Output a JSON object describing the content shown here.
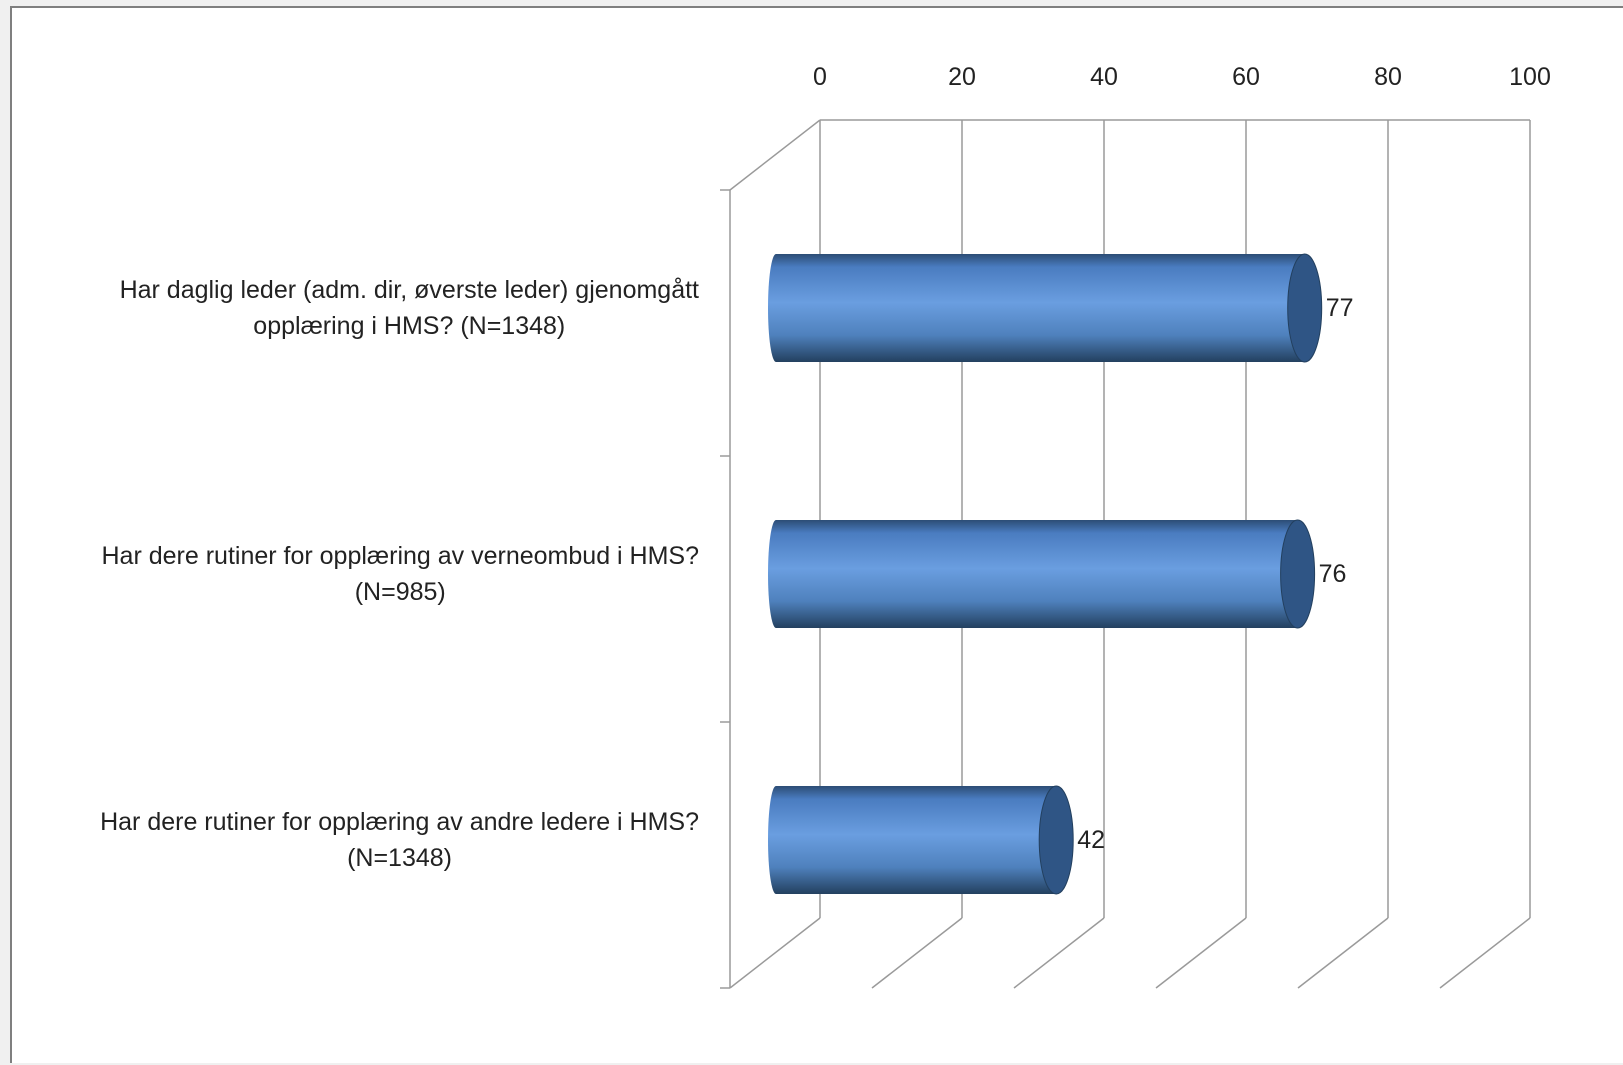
{
  "chart_data": {
    "type": "bar",
    "orientation": "horizontal",
    "style": "3d-cylinder",
    "categories": [
      "Har daglig leder (adm. dir, øverste leder) gjenomgått opplæring i HMS? (N=1348)",
      "Har dere rutiner for opplæring av verneombud i HMS? (N=985)",
      "Har dere rutiner for opplæring av andre ledere i HMS? (N=1348)"
    ],
    "category_label_lines": [
      [
        "Har daglig leder (adm. dir, øverste leder) gjenomgått",
        "opplæring i HMS? (N=1348)"
      ],
      [
        "Har dere rutiner for opplæring av verneombud i HMS?",
        "(N=985)"
      ],
      [
        "Har dere rutiner for opplæring av andre ledere i HMS?",
        "(N=1348)"
      ]
    ],
    "values": [
      77,
      76,
      42
    ],
    "data_labels": [
      "77",
      "76",
      "42"
    ],
    "xlim": [
      0,
      100
    ],
    "ticks": [
      0,
      20,
      40,
      60,
      80,
      100
    ],
    "tick_labels": [
      "0",
      "20",
      "40",
      "60",
      "80",
      "100"
    ],
    "axis_position": "top",
    "grid": true,
    "legend": "none",
    "colors": {
      "bar_light": "#6a9ee0",
      "bar_mid": "#4f81bd",
      "bar_dark": "#2c4d75",
      "bar_cap": "#2f5585",
      "grid": "#9a9a9a"
    }
  }
}
